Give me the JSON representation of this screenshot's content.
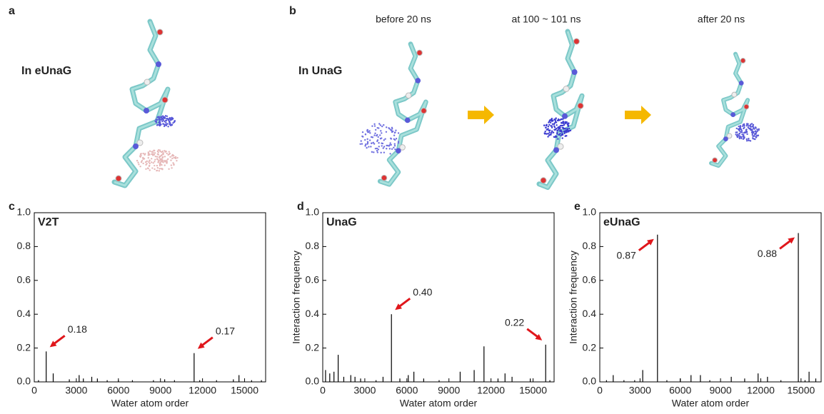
{
  "figure": {
    "panel_a": {
      "letter": "a",
      "caption": "In eUnaG"
    },
    "panel_b": {
      "letter": "b",
      "caption": "In UnaG",
      "stages": [
        "before 20 ns",
        "at 100 ~ 101 ns",
        "after 20 ns"
      ]
    }
  },
  "chart_data": [
    {
      "type": "bar",
      "panel": "c",
      "title": "V2T",
      "x_label": "Water atom order",
      "color": "#000000",
      "annotation_color": "#e0161b",
      "x": [
        300,
        850,
        1350,
        2500,
        3200,
        3500,
        4100,
        4500,
        5200,
        6000,
        7000,
        8500,
        9300,
        10000,
        11400,
        11800,
        13000,
        14200,
        14600,
        15500,
        16200
      ],
      "values": [
        0.01,
        0.18,
        0.05,
        0.015,
        0.04,
        0.02,
        0.03,
        0.02,
        0.01,
        0.01,
        0.01,
        0.01,
        0.015,
        0.01,
        0.17,
        0.01,
        0.01,
        0.015,
        0.04,
        0.01,
        0.01
      ],
      "value_labels": [
        null,
        "0.18",
        null,
        null,
        null,
        null,
        null,
        null,
        null,
        null,
        null,
        null,
        null,
        null,
        "0.17",
        null,
        null,
        null,
        null,
        null,
        null
      ],
      "xlim": [
        0,
        16500
      ],
      "xticks": [
        0,
        3000,
        6000,
        9000,
        12000,
        15000
      ],
      "ylim": [
        0,
        1
      ],
      "yticks": [
        {
          "value": 0,
          "label": "0.0"
        },
        0.2,
        0.4,
        0.6,
        0.8,
        {
          "value": 1,
          "label": "1.0"
        }
      ]
    },
    {
      "type": "bar",
      "panel": "d",
      "title": "UnaG",
      "x_label": "Water atom order",
      "y_label": "Interaction frequency",
      "color": "#000000",
      "annotation_color": "#e0161b",
      "x": [
        200,
        500,
        800,
        1100,
        1500,
        2000,
        2300,
        2700,
        3800,
        4300,
        4900,
        5500,
        6100,
        6500,
        7200,
        8300,
        9800,
        10800,
        11500,
        12500,
        13000,
        13500,
        14800,
        15900,
        16200
      ],
      "values": [
        0.07,
        0.05,
        0.06,
        0.16,
        0.03,
        0.04,
        0.03,
        0.02,
        0.01,
        0.03,
        0.4,
        0.02,
        0.04,
        0.06,
        0.02,
        0.01,
        0.06,
        0.07,
        0.21,
        0.02,
        0.05,
        0.03,
        0.02,
        0.22,
        0.01
      ],
      "value_labels": [
        null,
        null,
        null,
        null,
        null,
        null,
        null,
        null,
        null,
        null,
        "0.40",
        null,
        null,
        null,
        null,
        null,
        null,
        null,
        null,
        null,
        null,
        null,
        null,
        "0.22",
        null
      ],
      "xlim": [
        0,
        16500
      ],
      "xticks": [
        0,
        3000,
        6000,
        9000,
        12000,
        15000
      ],
      "ylim": [
        0,
        1
      ],
      "yticks": [
        {
          "value": 0,
          "label": "0.0"
        },
        0.2,
        0.4,
        0.6,
        0.8,
        {
          "value": 1,
          "label": "1.0"
        }
      ]
    },
    {
      "type": "bar",
      "panel": "e",
      "title": "eUnaG",
      "x_label": "Water atom order",
      "y_label": "Interaction frequency",
      "color": "#000000",
      "annotation_color": "#e0161b",
      "x": [
        500,
        1000,
        1800,
        2600,
        3200,
        4300,
        5000,
        6000,
        6800,
        7500,
        8200,
        9800,
        10800,
        11800,
        12500,
        13500,
        14800,
        15300,
        15600,
        16100
      ],
      "values": [
        0.01,
        0.04,
        0.01,
        0.01,
        0.07,
        0.87,
        0.01,
        0.02,
        0.04,
        0.04,
        0.01,
        0.03,
        0.02,
        0.05,
        0.03,
        0.01,
        0.88,
        0.01,
        0.06,
        0.02
      ],
      "value_labels": [
        null,
        null,
        null,
        null,
        null,
        "0.87",
        null,
        null,
        null,
        null,
        null,
        null,
        null,
        null,
        null,
        null,
        "0.88",
        null,
        null,
        null
      ],
      "xlim": [
        0,
        16500
      ],
      "xticks": [
        0,
        3000,
        6000,
        9000,
        12000,
        15000
      ],
      "ylim": [
        0,
        1
      ],
      "yticks": [
        {
          "value": 0,
          "label": "0.0"
        },
        0.2,
        0.4,
        0.6,
        0.8,
        {
          "value": 1,
          "label": "1.0"
        }
      ]
    }
  ]
}
